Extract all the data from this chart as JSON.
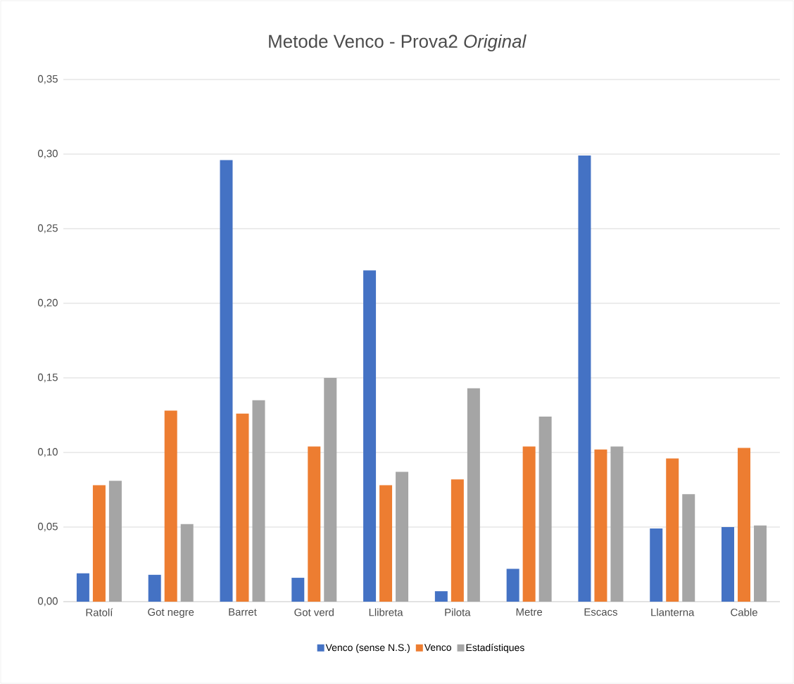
{
  "chart_data": {
    "type": "bar",
    "title": "Metode Venco - Prova2 *Original*",
    "categories": [
      "Ratolí",
      "Got negre",
      "Barret",
      "Got verd",
      "Llibreta",
      "Pilota",
      "Metre",
      "Escacs",
      "Llanterna",
      "Cable"
    ],
    "series": [
      {
        "name": "Venco (sense N.S.)",
        "color": "#4472c4",
        "values": [
          0.019,
          0.018,
          0.296,
          0.016,
          0.222,
          0.007,
          0.022,
          0.299,
          0.049,
          0.05
        ]
      },
      {
        "name": "Venco",
        "color": "#ed7d31",
        "values": [
          0.078,
          0.128,
          0.126,
          0.104,
          0.078,
          0.082,
          0.104,
          0.102,
          0.096,
          0.103
        ]
      },
      {
        "name": "Estadístiques",
        "color": "#a5a5a5",
        "values": [
          0.081,
          0.052,
          0.135,
          0.15,
          0.087,
          0.143,
          0.124,
          0.104,
          0.072,
          0.051
        ]
      }
    ],
    "ylim": [
      0,
      0.35
    ],
    "yticks": [
      {
        "value": 0,
        "label": "0,00"
      },
      {
        "value": 0.05,
        "label": "0,05"
      },
      {
        "value": 0.1,
        "label": "0,10"
      },
      {
        "value": 0.15,
        "label": "0,15"
      },
      {
        "value": 0.2,
        "label": "0,20"
      },
      {
        "value": 0.25,
        "label": "0,25"
      },
      {
        "value": 0.3,
        "label": "0,30"
      },
      {
        "value": 0.35,
        "label": "0,35"
      }
    ],
    "grid": "y",
    "legend": "bottom"
  }
}
